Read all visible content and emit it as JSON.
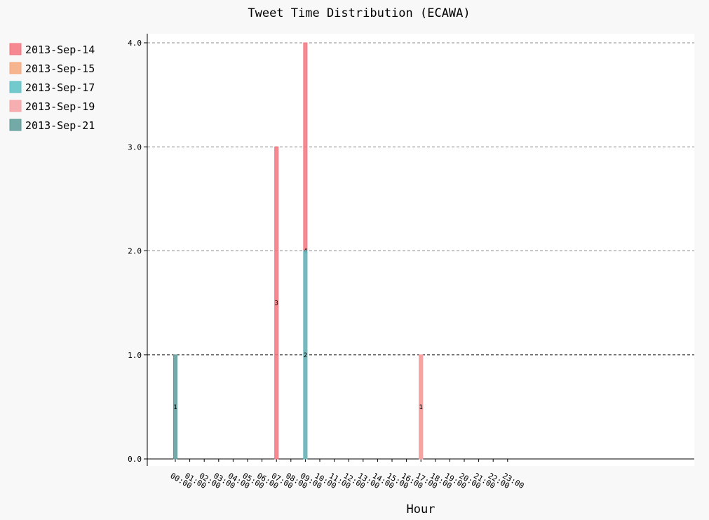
{
  "chart_data": {
    "type": "bar",
    "title": "Tweet Time Distribution (ECAWA)",
    "xlabel": "Hour",
    "ylabel": "",
    "ylim": [
      0,
      4
    ],
    "yticks": [
      "0.0",
      "1.0",
      "2.0",
      "3.0",
      "4.0"
    ],
    "grid": true,
    "legend_position": "left",
    "categories": [
      "00:00",
      "01:00",
      "02:00",
      "03:00",
      "04:00",
      "05:00",
      "06:00",
      "07:00",
      "08:00",
      "09:00",
      "10:00",
      "11:00",
      "12:00",
      "13:00",
      "14:00",
      "15:00",
      "16:00",
      "17:00",
      "18:00",
      "19:00",
      "20:00",
      "21:00",
      "22:00",
      "23:00"
    ],
    "series": [
      {
        "name": "2013-Sep-14",
        "color": "#f4747f",
        "points": [
          {
            "x": "07:00",
            "value": 3
          },
          {
            "x": "09:00",
            "value": 4
          }
        ]
      },
      {
        "name": "2013-Sep-15",
        "color": "#f6a97b",
        "points": [
          {
            "x": "17:00",
            "value": 1
          }
        ]
      },
      {
        "name": "2013-Sep-17",
        "color": "#5cc2c6",
        "points": [
          {
            "x": "09:00",
            "value": 2
          }
        ]
      },
      {
        "name": "2013-Sep-19",
        "color": "#f6a1a5",
        "points": [
          {
            "x": "17:00",
            "value": 1
          }
        ]
      },
      {
        "name": "2013-Sep-21",
        "color": "#5c9b98",
        "points": [
          {
            "x": "00:00",
            "value": 1
          }
        ]
      }
    ]
  }
}
